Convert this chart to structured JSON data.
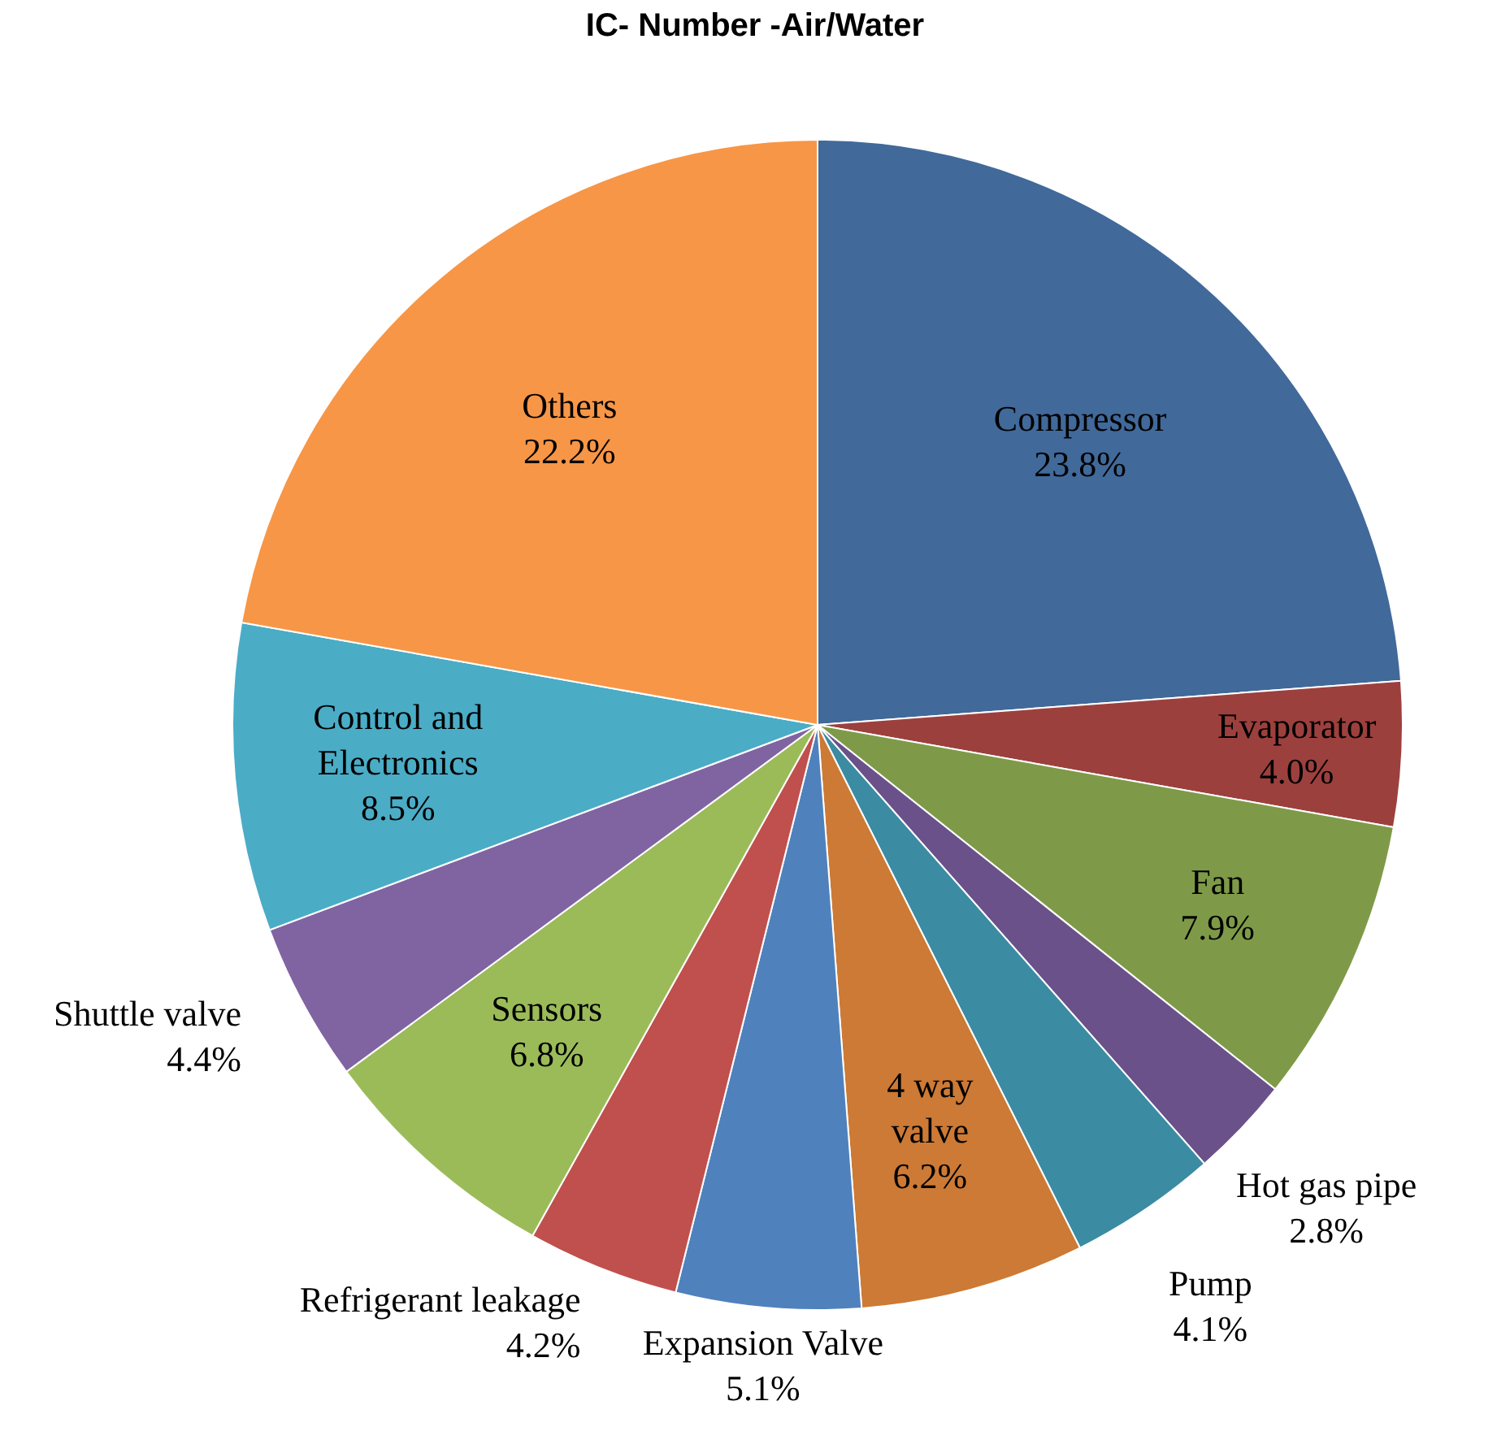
{
  "chart_data": {
    "type": "pie",
    "title": "IC- Number -Air/Water",
    "categories": [
      "Compressor",
      "Evaporator",
      "Fan",
      "Hot gas pipe",
      "Pump",
      "4 way\nvalve",
      "Expansion Valve",
      "Refrigerant leakage",
      "Sensors",
      "Shuttle valve",
      "Control and\nElectronics",
      "Others"
    ],
    "values": [
      23.8,
      4.0,
      7.9,
      2.8,
      4.1,
      6.2,
      5.1,
      4.2,
      6.8,
      4.4,
      8.5,
      22.2
    ],
    "value_labels": [
      "23.8%",
      "4.0%",
      "7.9%",
      "2.8%",
      "4.1%",
      "6.2%",
      "5.1%",
      "4.2%",
      "6.8%",
      "4.4%",
      "8.5%",
      "22.2%"
    ],
    "colors": [
      "#41699a",
      "#9c403e",
      "#7e9a48",
      "#6a5189",
      "#3b8ba3",
      "#cc7a35",
      "#4f81bd",
      "#c0504d",
      "#9bbb59",
      "#8064a2",
      "#4bacc6",
      "#f79646"
    ],
    "legend": false
  }
}
